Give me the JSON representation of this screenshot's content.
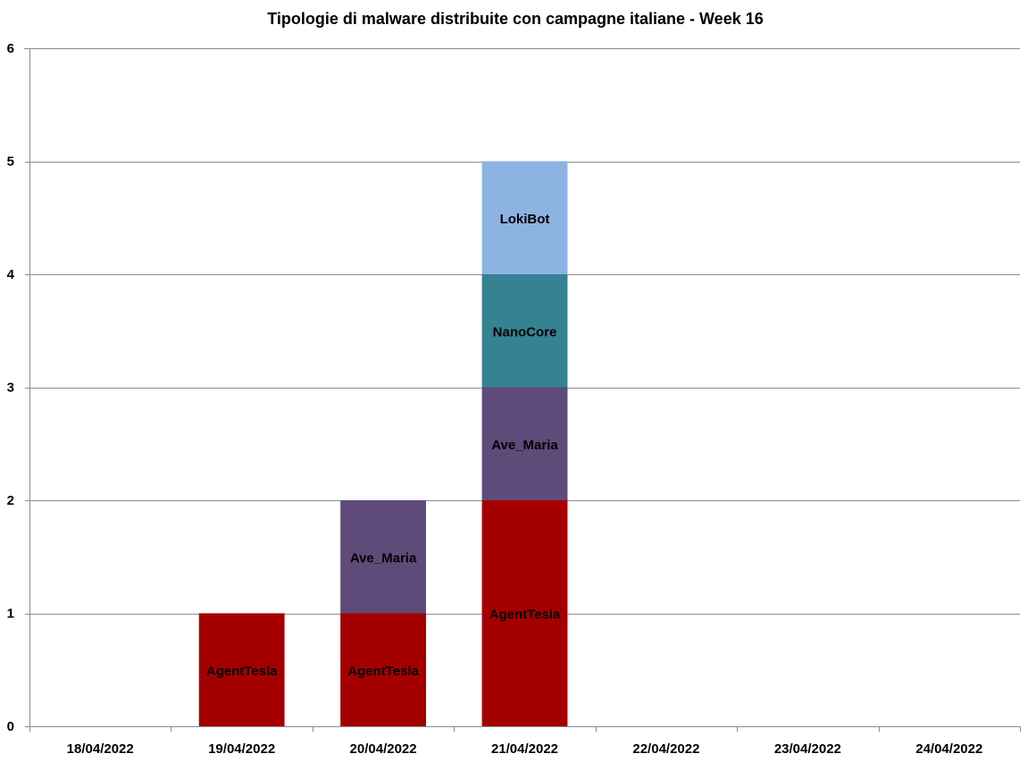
{
  "chart_data": {
    "type": "bar",
    "stacked": true,
    "title": "Tipologie di malware distribuite con campagne italiane - Week 16",
    "categories": [
      "18/04/2022",
      "19/04/2022",
      "20/04/2022",
      "21/04/2022",
      "22/04/2022",
      "23/04/2022",
      "24/04/2022"
    ],
    "ylim": [
      0,
      6
    ],
    "yticks": [
      0,
      1,
      2,
      3,
      4,
      5,
      6
    ],
    "grid": true,
    "legend": "none",
    "colors": {
      "AgentTesla": "#a50000",
      "Ave_Maria": "#5f4b7a",
      "NanoCore": "#358293",
      "LokiBot": "#8db3e2"
    },
    "series": [
      {
        "name": "AgentTesla",
        "values": [
          0,
          1,
          1,
          2,
          0,
          0,
          0
        ]
      },
      {
        "name": "Ave_Maria",
        "values": [
          0,
          0,
          1,
          1,
          0,
          0,
          0
        ]
      },
      {
        "name": "NanoCore",
        "values": [
          0,
          0,
          0,
          1,
          0,
          0,
          0
        ]
      },
      {
        "name": "LokiBot",
        "values": [
          0,
          0,
          0,
          1,
          0,
          0,
          0
        ]
      }
    ]
  }
}
